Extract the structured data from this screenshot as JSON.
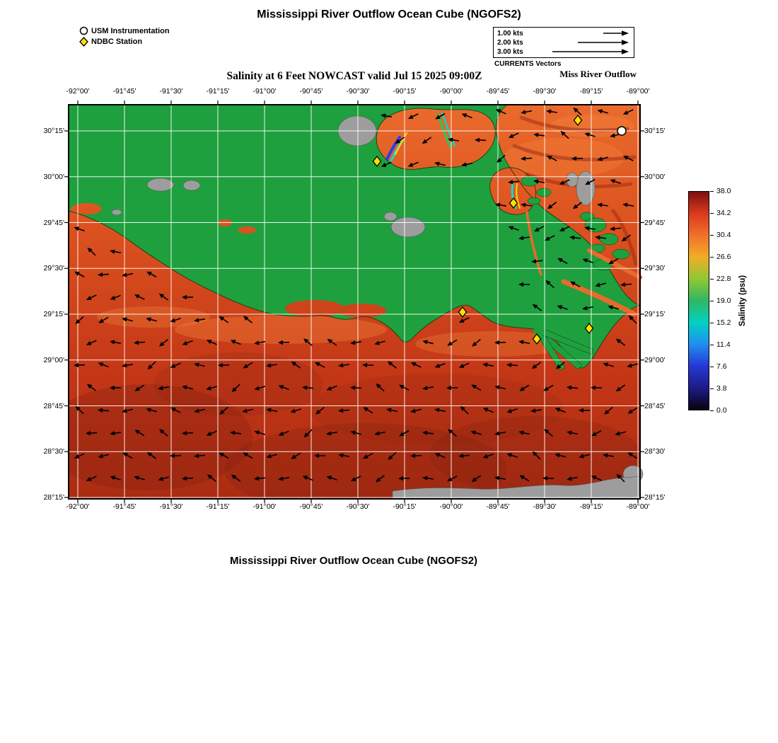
{
  "page": {
    "title_top": "Mississippi River Outflow Ocean Cube (NGOFS2)",
    "title_bottom": "Mississippi River Outflow Ocean Cube (NGOFS2)",
    "map_subtitle": "Salinity at 6 Feet NOWCAST valid Jul 15 2025 09:00Z"
  },
  "marker_legend": {
    "items": [
      {
        "icon": "circle-icon",
        "label": "USM Instrumentation"
      },
      {
        "icon": "diamond-icon",
        "label": "NDBC Station"
      }
    ]
  },
  "currents_legend": {
    "caption": "CURRENTS Vectors",
    "region_label": "Miss River Outflow",
    "rows": [
      {
        "label": "1.00 kts",
        "kts": 1
      },
      {
        "label": "2.00 kts",
        "kts": 2
      },
      {
        "label": "3.00 kts",
        "kts": 3
      }
    ]
  },
  "axes": {
    "lon_ticks": [
      "-92°00'",
      "-91°45'",
      "-91°30'",
      "-91°15'",
      "-91°00'",
      "-90°45'",
      "-90°30'",
      "-90°15'",
      "-90°00'",
      "-89°45'",
      "-89°30'",
      "-89°15'",
      "-89°00'"
    ],
    "lat_ticks": [
      "30°15'",
      "30°00'",
      "29°45'",
      "29°30'",
      "29°15'",
      "29°00'",
      "28°45'",
      "28°30'",
      "28°15'"
    ]
  },
  "colorbar": {
    "title": "Salinity (psu)",
    "min": 0,
    "max": 38,
    "tick_values": [
      0.0,
      3.8,
      7.6,
      11.4,
      15.2,
      19.0,
      22.8,
      26.6,
      30.4,
      34.2,
      38.0
    ],
    "tick_labels": [
      "0.0",
      "3.8",
      "7.6",
      "11.4",
      "15.2",
      "19.0",
      "22.8",
      "26.6",
      "30.4",
      "34.2",
      "38.0"
    ],
    "stops": [
      {
        "v": 0.0,
        "c": "#08020f"
      },
      {
        "v": 3.8,
        "c": "#1c1c86"
      },
      {
        "v": 7.6,
        "c": "#2638d4"
      },
      {
        "v": 11.4,
        "c": "#1f8ef0"
      },
      {
        "v": 15.2,
        "c": "#00d2c4"
      },
      {
        "v": 19.0,
        "c": "#2fb763"
      },
      {
        "v": 22.8,
        "c": "#8fc832"
      },
      {
        "v": 26.6,
        "c": "#f2ad26"
      },
      {
        "v": 30.4,
        "c": "#f2702a"
      },
      {
        "v": 34.2,
        "c": "#d93b1c"
      },
      {
        "v": 38.0,
        "c": "#7d0f10"
      }
    ]
  },
  "map": {
    "colors": {
      "land": "#1ea03e",
      "no_data": "#9d9d9d",
      "water_top": "#ea6a2c",
      "water_bottom": "#aa2c12",
      "grid": "#ffffff",
      "arrow": "#000000",
      "ndbc": "#ffe000",
      "usm": "#ffffff",
      "border": "#000000"
    },
    "ndbc_stations": [
      [
        436,
        80
      ],
      [
        720,
        22
      ],
      [
        629,
        139
      ],
      [
        557,
        293
      ],
      [
        662,
        331
      ],
      [
        736,
        316
      ]
    ],
    "usm_stations": [
      [
        782,
        37
      ]
    ]
  }
}
